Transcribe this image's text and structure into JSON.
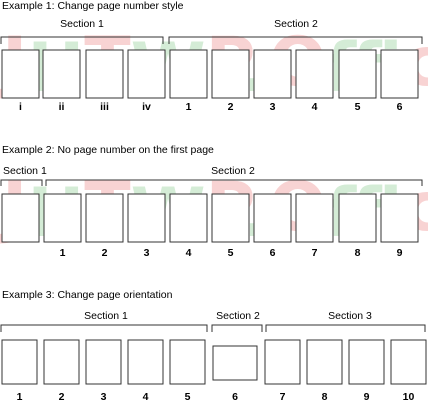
{
  "watermark": {
    "text": "JHTWP.Office教程网",
    "colors": [
      "#e33b3b",
      "#3fae4a"
    ]
  },
  "examples": [
    {
      "heading": "Example 1: Change page number style",
      "sections": [
        {
          "label": "Section 1"
        },
        {
          "label": "Section 2"
        }
      ],
      "pages": [
        "i",
        "ii",
        "iii",
        "iv",
        "1",
        "2",
        "3",
        "4",
        "5",
        "6"
      ]
    },
    {
      "heading": "Example 2: No page number on the first page",
      "sections": [
        {
          "label": "Section 1"
        },
        {
          "label": "Section 2"
        }
      ],
      "pages": [
        "",
        "1",
        "2",
        "3",
        "4",
        "5",
        "6",
        "7",
        "8",
        "9"
      ]
    },
    {
      "heading": "Example 3: Change page orientation",
      "sections": [
        {
          "label": "Section 1"
        },
        {
          "label": "Section 2"
        },
        {
          "label": "Section 3"
        }
      ],
      "pages": [
        "1",
        "2",
        "3",
        "4",
        "5",
        "6",
        "7",
        "8",
        "9",
        "10"
      ],
      "landscape_page_index": 5
    }
  ]
}
